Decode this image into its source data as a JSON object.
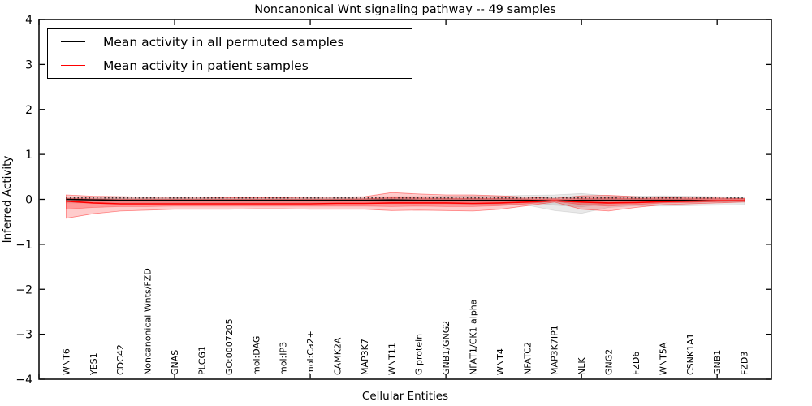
{
  "figure": {
    "title": "Noncanonical Wnt signaling pathway -- 49 samples",
    "xlabel": "Cellular Entities",
    "ylabel": "Inferred Activity"
  },
  "legend": {
    "items": [
      {
        "label": "Mean activity in all permuted samples",
        "color": "#000000"
      },
      {
        "label": "Mean activity in patient samples",
        "color": "#ff0000"
      }
    ]
  },
  "chart_data": {
    "type": "line",
    "title": "Noncanonical Wnt signaling pathway -- 49 samples",
    "xlabel": "Cellular Entities",
    "ylabel": "Inferred Activity",
    "ylim": [
      -4,
      4
    ],
    "xlim": [
      0,
      27
    ],
    "yticks": [
      -4,
      -3,
      -2,
      -1,
      0,
      1,
      2,
      3,
      4
    ],
    "xtick_positions": [
      0,
      5,
      10,
      15,
      20,
      25
    ],
    "grid": false,
    "legend_position": "upper left",
    "categories": [
      "WNT6",
      "YES1",
      "CDC42",
      "Noncanonical Wnts/FZD",
      "GNAS",
      "PLCG1",
      "GO:0007205",
      "mol:DAG",
      "mol:IP3",
      "mol:Ca2+",
      "CAMK2A",
      "MAP3K7",
      "WNT11",
      "G protein",
      "GNB1/GNG2",
      "NFAT1/CK1 alpha",
      "WNT4",
      "NFATC2",
      "MAP3K7IP1",
      "NLK",
      "GNG2",
      "FZD6",
      "WNT5A",
      "CSNK1A1",
      "GNB1",
      "FZD3"
    ],
    "series": [
      {
        "name": "zero-reference-line",
        "color": "#000000",
        "line_width": 1.1,
        "dash": "1.5 3.2",
        "values": [
          0.03,
          0.03,
          0.03,
          0.03,
          0.03,
          0.03,
          0.03,
          0.03,
          0.03,
          0.03,
          0.03,
          0.03,
          0.03,
          0.03,
          0.03,
          0.03,
          0.03,
          0.03,
          0.03,
          0.03,
          0.03,
          0.03,
          0.03,
          0.03,
          0.03,
          0.03
        ]
      },
      {
        "name": "Mean activity in all permuted samples",
        "color": "#000000",
        "line_width": 1.5,
        "dash": "none",
        "values": [
          0.0,
          -0.01,
          -0.02,
          -0.02,
          -0.02,
          -0.02,
          -0.02,
          -0.02,
          -0.02,
          -0.02,
          -0.02,
          -0.02,
          -0.01,
          -0.02,
          -0.02,
          -0.02,
          -0.02,
          -0.02,
          -0.03,
          -0.02,
          -0.02,
          -0.02,
          -0.02,
          -0.02,
          -0.03,
          -0.03
        ]
      },
      {
        "name": "Mean activity in patient samples",
        "color": "#ff0000",
        "line_width": 1.6,
        "dash": "none",
        "values": [
          -0.04,
          -0.08,
          -0.1,
          -0.1,
          -0.1,
          -0.1,
          -0.1,
          -0.1,
          -0.1,
          -0.1,
          -0.09,
          -0.09,
          -0.08,
          -0.08,
          -0.08,
          -0.09,
          -0.08,
          -0.06,
          -0.03,
          -0.06,
          -0.08,
          -0.07,
          -0.05,
          -0.04,
          -0.03,
          -0.03
        ]
      }
    ],
    "bands": [
      {
        "name": "permuted-range-outer",
        "fill": "rgba(110,110,110,0.15)",
        "stroke": "rgba(0,0,0,0.10)",
        "upper": [
          0.04,
          0.04,
          0.04,
          0.04,
          0.04,
          0.04,
          0.04,
          0.04,
          0.04,
          0.04,
          0.04,
          0.05,
          0.06,
          0.06,
          0.07,
          0.08,
          0.08,
          0.09,
          0.1,
          0.13,
          0.08,
          0.07,
          0.08,
          0.07,
          0.06,
          0.05
        ],
        "lower": [
          -0.08,
          -0.08,
          -0.08,
          -0.08,
          -0.08,
          -0.08,
          -0.08,
          -0.08,
          -0.08,
          -0.08,
          -0.08,
          -0.09,
          -0.1,
          -0.1,
          -0.1,
          -0.11,
          -0.11,
          -0.13,
          -0.25,
          -0.31,
          -0.18,
          -0.14,
          -0.15,
          -0.14,
          -0.13,
          -0.12
        ]
      },
      {
        "name": "permuted-range-inner",
        "fill": "rgba(110,110,110,0.18)",
        "stroke": "rgba(0,0,0,0.08)",
        "upper": [
          0.02,
          0.02,
          0.02,
          0.02,
          0.02,
          0.02,
          0.02,
          0.02,
          0.02,
          0.02,
          0.02,
          0.02,
          0.03,
          0.03,
          0.03,
          0.03,
          0.03,
          0.03,
          0.05,
          0.07,
          0.04,
          0.03,
          0.03,
          0.03,
          0.03,
          0.03
        ],
        "lower": [
          -0.04,
          -0.04,
          -0.04,
          -0.04,
          -0.04,
          -0.04,
          -0.04,
          -0.04,
          -0.04,
          -0.04,
          -0.04,
          -0.04,
          -0.05,
          -0.05,
          -0.05,
          -0.05,
          -0.05,
          -0.06,
          -0.13,
          -0.17,
          -0.09,
          -0.07,
          -0.07,
          -0.06,
          -0.06,
          -0.06
        ]
      },
      {
        "name": "patient-range-outer",
        "fill": "rgba(255,0,0,0.20)",
        "stroke": "rgba(255,0,0,0.45)",
        "upper": [
          0.1,
          0.07,
          0.06,
          0.05,
          0.05,
          0.05,
          0.04,
          0.04,
          0.04,
          0.05,
          0.05,
          0.06,
          0.15,
          0.12,
          0.1,
          0.1,
          0.08,
          0.05,
          0.02,
          0.08,
          0.09,
          0.06,
          0.04,
          0.03,
          0.03,
          0.02
        ],
        "lower": [
          -0.42,
          -0.32,
          -0.26,
          -0.24,
          -0.22,
          -0.22,
          -0.22,
          -0.21,
          -0.21,
          -0.22,
          -0.22,
          -0.22,
          -0.25,
          -0.24,
          -0.25,
          -0.26,
          -0.22,
          -0.14,
          -0.06,
          -0.22,
          -0.26,
          -0.18,
          -0.12,
          -0.1,
          -0.08,
          -0.06
        ]
      },
      {
        "name": "patient-range-inner",
        "fill": "rgba(255,0,0,0.25)",
        "stroke": "rgba(255,0,0,0.30)",
        "upper": [
          0.02,
          0.01,
          0.0,
          0.0,
          0.0,
          0.0,
          0.0,
          0.0,
          0.0,
          0.0,
          0.0,
          0.01,
          0.04,
          0.03,
          0.02,
          0.02,
          0.02,
          0.01,
          0.0,
          0.02,
          0.03,
          0.02,
          0.01,
          0.01,
          0.01,
          0.01
        ],
        "lower": [
          -0.22,
          -0.18,
          -0.16,
          -0.16,
          -0.15,
          -0.15,
          -0.15,
          -0.15,
          -0.15,
          -0.15,
          -0.15,
          -0.15,
          -0.16,
          -0.15,
          -0.16,
          -0.16,
          -0.14,
          -0.1,
          -0.04,
          -0.12,
          -0.15,
          -0.12,
          -0.08,
          -0.07,
          -0.05,
          -0.04
        ]
      }
    ]
  }
}
